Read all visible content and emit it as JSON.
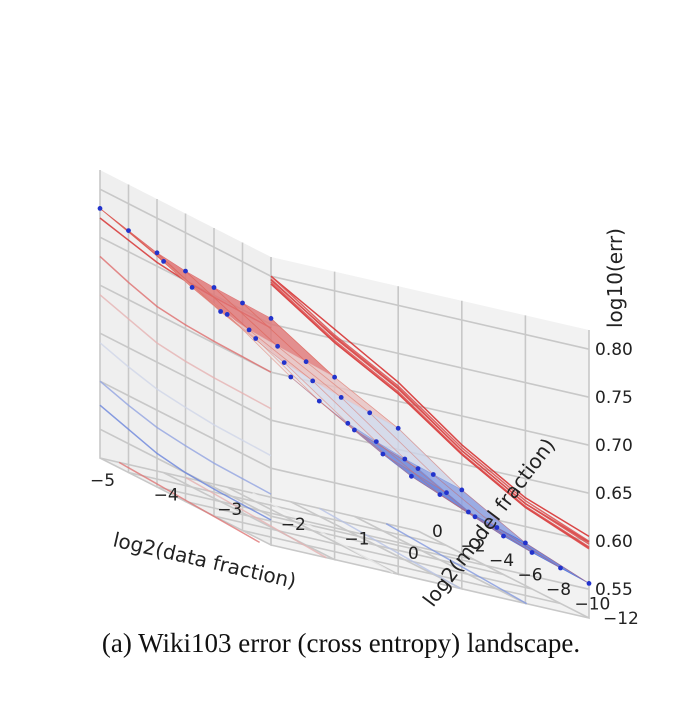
{
  "caption": "(a) Wiki103 error (cross entropy) landscape.",
  "colors": {
    "high": "#d7191c",
    "low": "#2c5fd6",
    "dot": "#2233cc",
    "pane": "#f2f2f2",
    "grid": "#c8c8c8"
  },
  "chart_data": {
    "type": "surface3d",
    "title": "",
    "xlabel": "log2(data fraction)",
    "ylabel": "log2(model fraction)",
    "zlabel": "log10(err)",
    "x_ticks": [
      -5,
      -4,
      -3,
      -2,
      -1,
      0
    ],
    "y_ticks": [
      0,
      -2,
      -4,
      -6,
      -8,
      -10,
      -12
    ],
    "z_ticks": [
      0.55,
      0.6,
      0.65,
      0.7,
      0.75,
      0.8
    ],
    "xlim": [
      -5,
      0
    ],
    "ylim": [
      -12,
      0
    ],
    "zlim": [
      0.52,
      0.82
    ],
    "x_tick_labels": [
      "−5",
      "−4",
      "−3",
      "−2",
      "−1",
      "0"
    ],
    "y_tick_labels": [
      "0",
      "−2",
      "−4",
      "−6",
      "−8",
      "−10",
      "−12"
    ],
    "z_tick_labels": [
      "0.55",
      "0.60",
      "0.65",
      "0.70",
      "0.75",
      "0.80"
    ],
    "grid_x": [
      -5,
      -4,
      -3,
      -2,
      -1,
      0
    ],
    "grid_y": [
      0,
      -2,
      -4,
      -6,
      -8,
      -10,
      -12
    ],
    "z_values": [
      [
        0.78,
        0.74,
        0.7,
        0.65,
        0.61,
        0.585
      ],
      [
        0.772,
        0.728,
        0.69,
        0.64,
        0.6,
        0.575
      ],
      [
        0.764,
        0.718,
        0.68,
        0.632,
        0.592,
        0.565
      ],
      [
        0.76,
        0.714,
        0.676,
        0.628,
        0.588,
        0.56
      ],
      [
        0.758,
        0.712,
        0.674,
        0.625,
        0.585,
        0.558
      ],
      [
        0.757,
        0.711,
        0.673,
        0.624,
        0.584,
        0.557
      ],
      [
        0.756,
        0.71,
        0.672,
        0.623,
        0.583,
        0.556
      ]
    ]
  }
}
